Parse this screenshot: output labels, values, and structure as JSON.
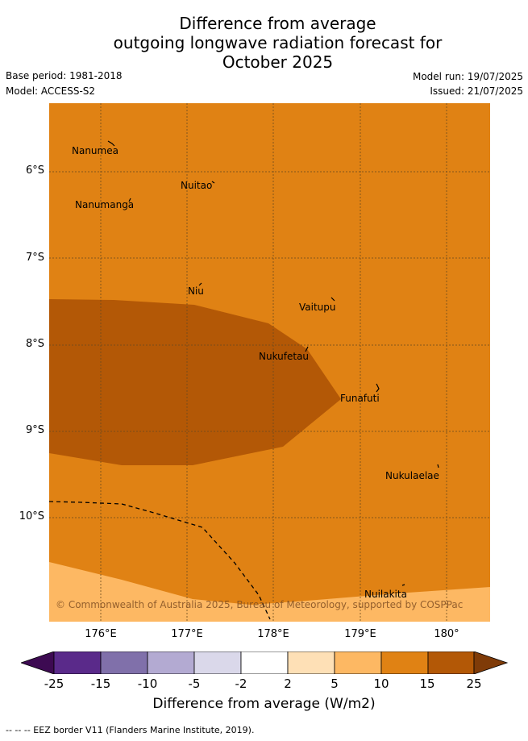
{
  "title_lines": [
    "Difference from average",
    "outgoing longwave radiation forecast for",
    "October 2025"
  ],
  "base_period": "Base period: 1981-2018",
  "model": "Model: ACCESS-S2",
  "model_run": "Model run: 19/07/2025",
  "issued": "Issued: 21/07/2025",
  "places": [
    {
      "name": "Nanumea"
    },
    {
      "name": "Nuitao"
    },
    {
      "name": "Nanumanga"
    },
    {
      "name": "Niu"
    },
    {
      "name": "Vaitupu"
    },
    {
      "name": "Nukufetau"
    },
    {
      "name": "Funafuti"
    },
    {
      "name": "Nukulaelae"
    },
    {
      "name": "Nuilakita"
    }
  ],
  "latitude_labels": [
    "6°S",
    "7°S",
    "8°S",
    "9°S",
    "10°S"
  ],
  "longitude_labels": [
    "176°E",
    "177°E",
    "178°E",
    "179°E",
    "180°"
  ],
  "copyright": "© Commonwealth of Australia 2025, Bureau of Meteorology, supported by COSPPac",
  "colorbar": {
    "ticks": [
      "-25",
      "-15",
      "-10",
      "-5",
      "-2",
      "2",
      "5",
      "10",
      "15",
      "25"
    ],
    "colors": [
      "#5a2a8a",
      "#8070aa",
      "#b3aad2",
      "#dad8ea",
      "#ffffff",
      "#fee0b6",
      "#fdb863",
      "#e08214",
      "#b35806"
    ],
    "under_color": "#3d0a52",
    "over_color": "#7f3b08",
    "label": "Difference from average (W/m2)"
  },
  "map_fills": {
    "background": "#e08214",
    "high": "#b35806",
    "low": "#fdb863"
  },
  "footer": "-- --  -- EEZ border V11 (Flanders Marine Institute, 2019)."
}
